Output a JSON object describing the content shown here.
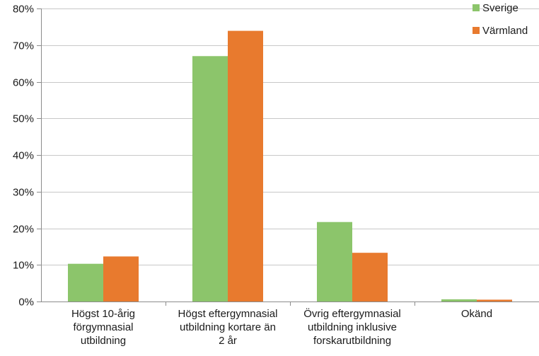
{
  "chart_data": {
    "type": "bar",
    "categories": [
      [
        "Högst 10-årig",
        "förgymnasial",
        "utbildning"
      ],
      [
        "Högst eftergymnasial",
        "utbildning kortare än",
        "2 år"
      ],
      [
        "Övrig eftergymnasial",
        "utbildning inklusive",
        "forskarutbildning"
      ],
      [
        "Okänd"
      ]
    ],
    "series": [
      {
        "name": "Sverige",
        "color": "#8cc56b",
        "values": [
          10.3,
          67.0,
          21.7,
          0.6
        ]
      },
      {
        "name": "Värmland",
        "color": "#e87a2e",
        "values": [
          12.3,
          73.9,
          13.3,
          0.5
        ]
      }
    ],
    "ylim": [
      0,
      80
    ],
    "yticks": [
      0,
      10,
      20,
      30,
      40,
      50,
      60,
      70,
      80
    ],
    "ytick_labels": [
      "0%",
      "10%",
      "20%",
      "30%",
      "40%",
      "50%",
      "60%",
      "70%",
      "80%"
    ],
    "grid": true,
    "legend_position": "top-right",
    "title": "",
    "xlabel": "",
    "ylabel": ""
  }
}
